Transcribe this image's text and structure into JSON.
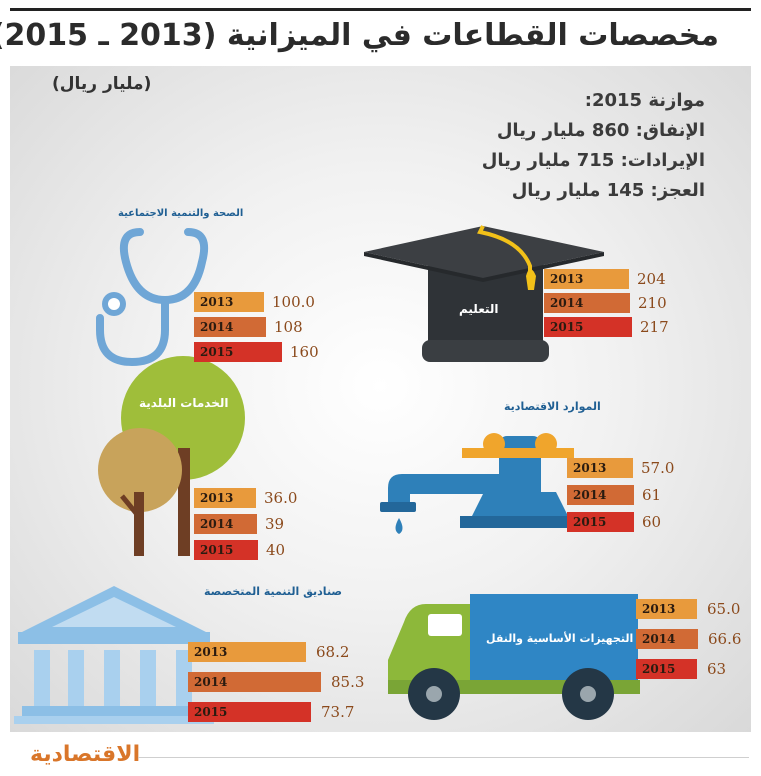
{
  "title": "مخصصات القطاعات في الميزانية (2013 ـ 2015)",
  "unit": "(مليار ريال)",
  "budget": {
    "heading": "موازنة 2015:",
    "spending": "الإنفاق: 860 مليار ريال",
    "revenue": "الإيرادات: 715 مليار ريال",
    "deficit": "العجز: 145 مليار ريال"
  },
  "colors": {
    "y2013": "#e89a3c",
    "y2014": "#d16a35",
    "y2015": "#d43227"
  },
  "logo": "الاقتصادية",
  "chart_data": {
    "type": "bar",
    "years": [
      "2013",
      "2014",
      "2015"
    ],
    "sectors": [
      {
        "id": "education",
        "name": "التعليم",
        "labels": [
          "204",
          "210",
          "217"
        ],
        "values": [
          204,
          210,
          217
        ]
      },
      {
        "id": "health",
        "name": "الصحة والتنمية الاجتماعية",
        "labels": [
          "100.0",
          "108",
          "160"
        ],
        "values": [
          100.0,
          108,
          160
        ]
      },
      {
        "id": "economic",
        "name": "الموارد الاقتصادية",
        "labels": [
          "57.0",
          "61",
          "60"
        ],
        "values": [
          57.0,
          61,
          60
        ]
      },
      {
        "id": "municipal",
        "name": "الخدمات البلدية",
        "labels": [
          "36.0",
          "39",
          "40"
        ],
        "values": [
          36.0,
          39,
          40
        ]
      },
      {
        "id": "transport",
        "name": "التجهيزات الأساسية والنقل",
        "labels": [
          "65.0",
          "66.6",
          "63"
        ],
        "values": [
          65.0,
          66.6,
          63
        ]
      },
      {
        "id": "funds",
        "name": "صناديق التنمية المتخصصة",
        "labels": [
          "68.2",
          "85.3",
          "73.7"
        ],
        "values": [
          68.2,
          85.3,
          73.7
        ]
      }
    ]
  }
}
